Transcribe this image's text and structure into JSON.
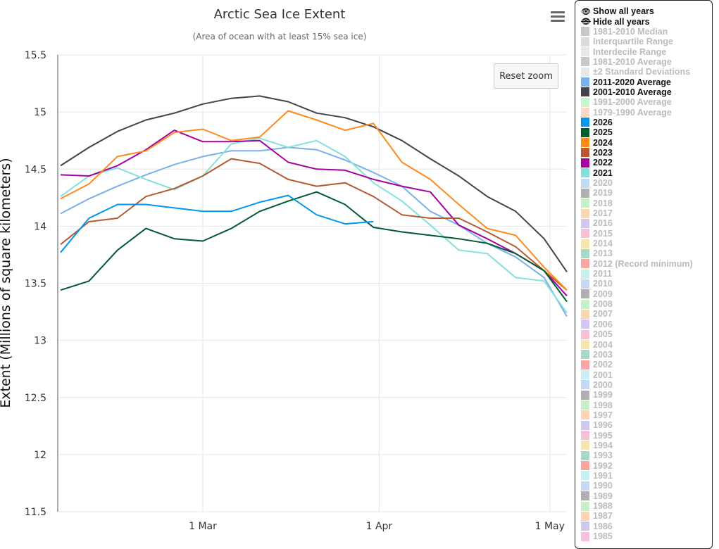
{
  "chart_data": {
    "type": "line",
    "title": "Arctic Sea Ice Extent",
    "subtitle": "(Area of ocean with at least 15% sea ice)",
    "ylabel": "Extent (Millions of square kilometers)",
    "xlabel": "",
    "ylim": [
      11.5,
      15.5
    ],
    "yticks": [
      "15.5",
      "15",
      "14.5",
      "14",
      "13.5",
      "13",
      "12.5",
      "12",
      "11.5"
    ],
    "xlim_day_of_year": [
      34.5,
      124
    ],
    "xticks": [
      {
        "label": "1 Mar",
        "day": 60
      },
      {
        "label": "1 Apr",
        "day": 91
      },
      {
        "label": "1 May",
        "day": 121
      }
    ],
    "grid": true,
    "x": [
      35,
      40,
      45,
      50,
      55,
      60,
      65,
      70,
      75,
      80,
      85,
      90,
      95,
      100,
      105,
      110,
      115,
      120,
      124
    ],
    "series": [
      {
        "name": "2011-2020 Average",
        "color": "#7cb0e8",
        "values": [
          14.11,
          14.24,
          14.35,
          14.45,
          14.54,
          14.61,
          14.66,
          14.66,
          14.69,
          14.67,
          14.58,
          14.47,
          14.35,
          14.13,
          14.01,
          13.85,
          13.73,
          13.55,
          13.21
        ]
      },
      {
        "name": "2001-2010 Average",
        "color": "#434348",
        "values": [
          14.53,
          14.69,
          14.83,
          14.93,
          14.99,
          15.07,
          15.12,
          15.14,
          15.09,
          14.99,
          14.95,
          14.87,
          14.75,
          14.59,
          14.44,
          14.26,
          14.13,
          13.89,
          13.6
        ]
      },
      {
        "name": "2021",
        "color": "#85e0dc",
        "values": [
          14.26,
          14.44,
          14.51,
          14.41,
          14.32,
          14.44,
          14.72,
          14.77,
          14.69,
          14.75,
          14.61,
          14.38,
          14.22,
          14.01,
          13.79,
          13.76,
          13.55,
          13.52,
          13.24
        ]
      },
      {
        "name": "2022",
        "color": "#a500a5",
        "values": [
          14.45,
          14.44,
          14.53,
          14.67,
          14.84,
          14.74,
          14.74,
          14.75,
          14.56,
          14.5,
          14.49,
          14.41,
          14.35,
          14.3,
          14.01,
          13.89,
          13.76,
          13.61,
          13.39
        ]
      },
      {
        "name": "2023",
        "color": "#b55a30",
        "values": [
          13.84,
          14.04,
          14.07,
          14.26,
          14.33,
          14.44,
          14.59,
          14.55,
          14.41,
          14.35,
          14.38,
          14.26,
          14.1,
          14.07,
          14.07,
          13.95,
          13.82,
          13.61,
          13.44
        ]
      },
      {
        "name": "2024",
        "color": "#ff8a1c",
        "values": [
          14.24,
          14.37,
          14.61,
          14.66,
          14.82,
          14.85,
          14.75,
          14.78,
          15.01,
          14.93,
          14.84,
          14.9,
          14.56,
          14.41,
          14.19,
          13.98,
          13.92,
          13.64,
          13.44
        ]
      },
      {
        "name": "2025",
        "color": "#005a32",
        "values": [
          13.44,
          13.52,
          13.79,
          13.98,
          13.89,
          13.87,
          13.98,
          14.13,
          14.22,
          14.3,
          14.19,
          13.99,
          13.95,
          13.92,
          13.89,
          13.85,
          13.76,
          13.61,
          13.34
        ]
      },
      {
        "name": "2026",
        "color": "#0096f0",
        "values": [
          13.77,
          14.07,
          14.19,
          14.19,
          14.16,
          14.13,
          14.13,
          14.21,
          14.27,
          14.1,
          14.02,
          14.04,
          null,
          null,
          null,
          null,
          null,
          null,
          null
        ]
      }
    ]
  },
  "reset_zoom_label": "Reset zoom",
  "legend": {
    "show_all": "Show all years",
    "hide_all": "Hide all years",
    "items": [
      {
        "label": "1981-2010 Median",
        "color": "#c8c8c8",
        "active": false
      },
      {
        "label": "Interquartile Range",
        "color": "#dcdcdc",
        "active": false
      },
      {
        "label": "Interdecile Range",
        "color": "#e8e8e8",
        "active": false
      },
      {
        "label": "1981-2010 Average",
        "color": "#c8c8c8",
        "active": false
      },
      {
        "label": "±2 Standard Deviations",
        "color": "#e8e8e8",
        "active": false
      },
      {
        "label": "2011-2020 Average",
        "color": "#7cb0e8",
        "active": true
      },
      {
        "label": "2001-2010 Average",
        "color": "#434348",
        "active": true
      },
      {
        "label": "1991-2000 Average",
        "color": "#c8f5d2",
        "active": false
      },
      {
        "label": "1979-1990 Average",
        "color": "#fdd8c0",
        "active": false
      },
      {
        "label": "2026",
        "color": "#0096f0",
        "active": true
      },
      {
        "label": "2025",
        "color": "#005a32",
        "active": true
      },
      {
        "label": "2024",
        "color": "#ff8a1c",
        "active": true
      },
      {
        "label": "2023",
        "color": "#b55a30",
        "active": true
      },
      {
        "label": "2022",
        "color": "#a500a5",
        "active": true
      },
      {
        "label": "2021",
        "color": "#85e0dc",
        "active": true
      },
      {
        "label": "2020",
        "color": "#c5daf5",
        "active": false
      },
      {
        "label": "2019",
        "color": "#b0b0b0",
        "active": false
      },
      {
        "label": "2018",
        "color": "#c8f0c8",
        "active": false
      },
      {
        "label": "2017",
        "color": "#fcd5b5",
        "active": false
      },
      {
        "label": "2016",
        "color": "#d0c8f0",
        "active": false
      },
      {
        "label": "2015",
        "color": "#f8c0d8",
        "active": false
      },
      {
        "label": "2014",
        "color": "#f0e8b0",
        "active": false
      },
      {
        "label": "2013",
        "color": "#a8d8c8",
        "active": false
      },
      {
        "label": "2012 (Record minimum)",
        "color": "#f8a8a0",
        "active": false
      },
      {
        "label": "2011",
        "color": "#c8f0f0",
        "active": false
      },
      {
        "label": "2010",
        "color": "#c5daf5",
        "active": false
      },
      {
        "label": "2009",
        "color": "#b0b0b0",
        "active": false
      },
      {
        "label": "2008",
        "color": "#c8f0c8",
        "active": false
      },
      {
        "label": "2007",
        "color": "#fcd5b5",
        "active": false
      },
      {
        "label": "2006",
        "color": "#d0c8f0",
        "active": false
      },
      {
        "label": "2005",
        "color": "#f8c0d8",
        "active": false
      },
      {
        "label": "2004",
        "color": "#f0e8b0",
        "active": false
      },
      {
        "label": "2003",
        "color": "#a8d8c8",
        "active": false
      },
      {
        "label": "2002",
        "color": "#f8a8a0",
        "active": false
      },
      {
        "label": "2001",
        "color": "#c8f0f0",
        "active": false
      },
      {
        "label": "2000",
        "color": "#c5daf5",
        "active": false
      },
      {
        "label": "1999",
        "color": "#b0b0b0",
        "active": false
      },
      {
        "label": "1998",
        "color": "#c8f0c8",
        "active": false
      },
      {
        "label": "1997",
        "color": "#fcd5b5",
        "active": false
      },
      {
        "label": "1996",
        "color": "#d0c8f0",
        "active": false
      },
      {
        "label": "1995",
        "color": "#f8c0d8",
        "active": false
      },
      {
        "label": "1994",
        "color": "#f0e8b0",
        "active": false
      },
      {
        "label": "1993",
        "color": "#a8d8c8",
        "active": false
      },
      {
        "label": "1992",
        "color": "#f8a8a0",
        "active": false
      },
      {
        "label": "1991",
        "color": "#c8f0f0",
        "active": false
      },
      {
        "label": "1990",
        "color": "#c5daf5",
        "active": false
      },
      {
        "label": "1989",
        "color": "#b0b0b0",
        "active": false
      },
      {
        "label": "1988",
        "color": "#c8f0c8",
        "active": false
      },
      {
        "label": "1987",
        "color": "#fcd5b5",
        "active": false
      },
      {
        "label": "1986",
        "color": "#d0c8f0",
        "active": false
      },
      {
        "label": "1985",
        "color": "#f8c0d8",
        "active": false
      }
    ]
  }
}
